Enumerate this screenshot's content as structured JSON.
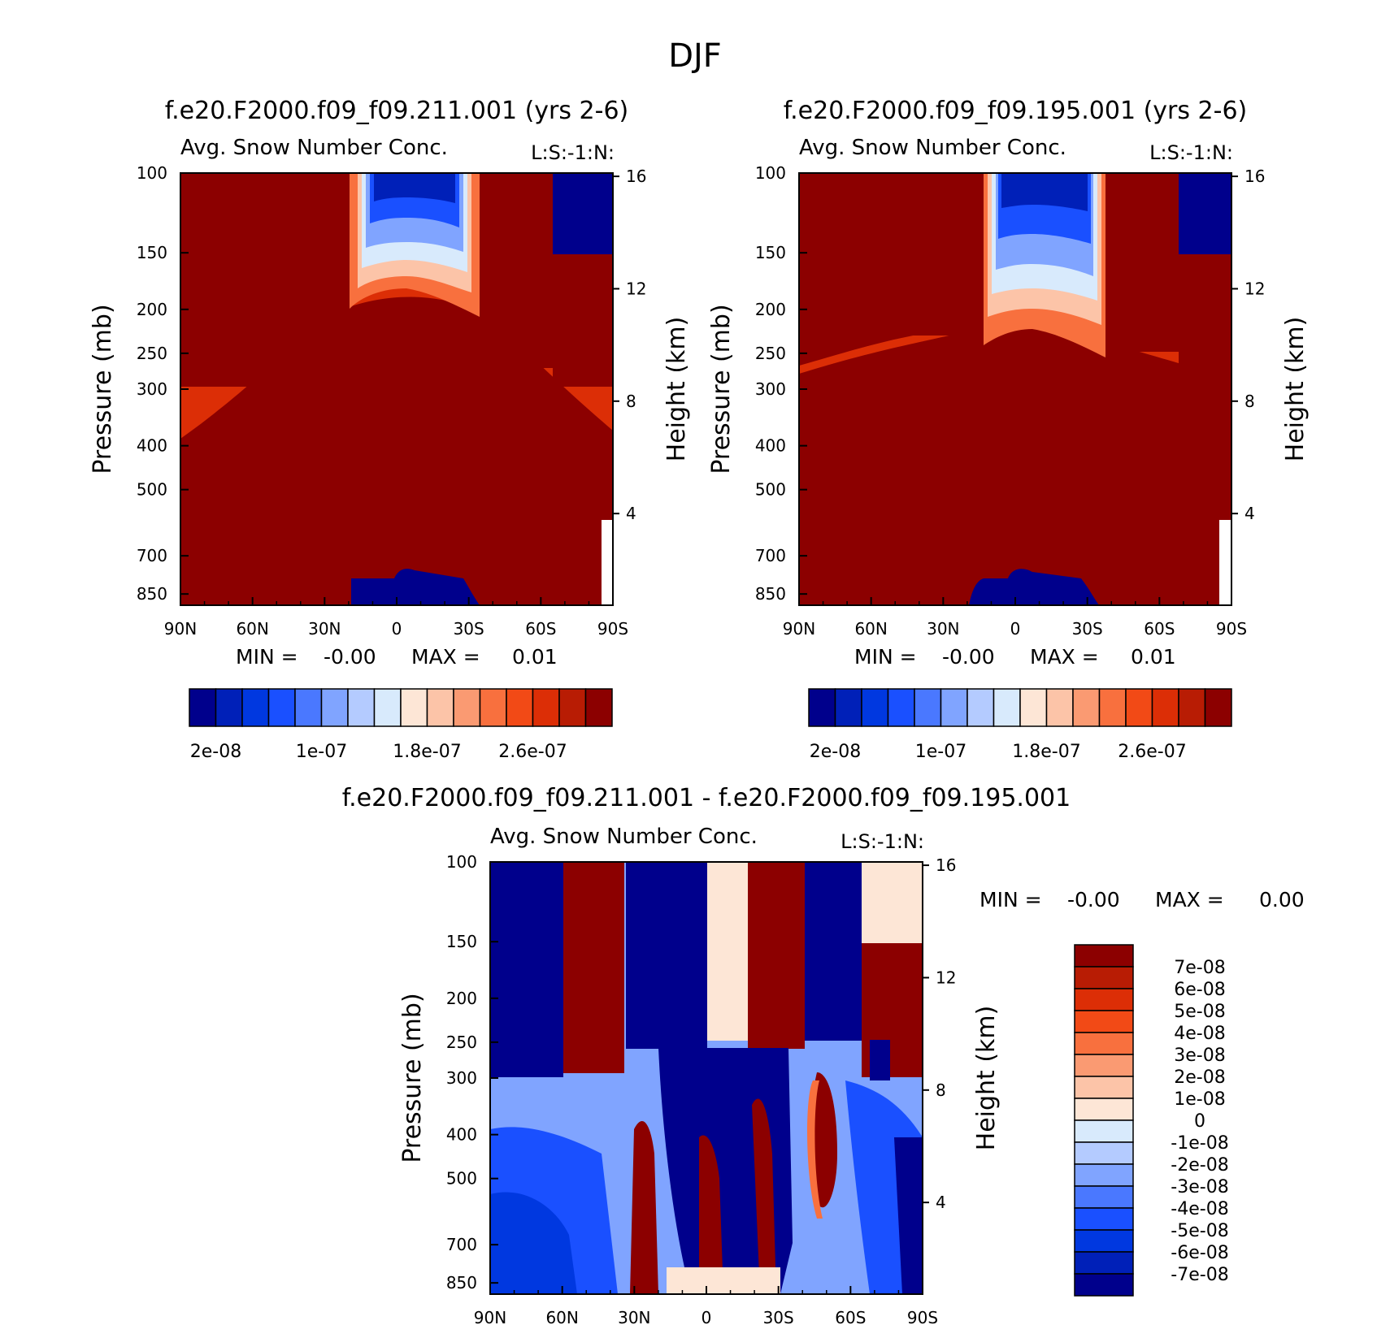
{
  "figure": {
    "title": "DJF"
  },
  "colors": {
    "abs_palette": [
      "#00008c",
      "#0020b8",
      "#0038e0",
      "#1a50ff",
      "#4a78ff",
      "#80a4ff",
      "#b4cbff",
      "#d8eafc",
      "#fde6d6",
      "#fcc4a8",
      "#fa9a72",
      "#f8703e",
      "#f24a16",
      "#dc2e06",
      "#b81c04",
      "#8c0000"
    ],
    "diff_palette": [
      "#00008c",
      "#0020b8",
      "#0038e0",
      "#1a50ff",
      "#4a78ff",
      "#80a4ff",
      "#b4cbff",
      "#d8eafc",
      "#fde6d6",
      "#fcc4a8",
      "#fa9a72",
      "#f8703e",
      "#f24a16",
      "#dc2e06",
      "#b81c04",
      "#8c0000"
    ]
  },
  "chart_data": [
    {
      "type": "heatmap",
      "title": "f.e20.F2000.f09_f09.211.001 (yrs 2-6)",
      "subtitle": "Avg. Snow Number Conc.",
      "annotation": "L:S:-1:N:",
      "ylabel": "Pressure (mb)",
      "y2label": "Height (km)",
      "x_ticks": [
        "90N",
        "60N",
        "30N",
        "0",
        "30S",
        "60S",
        "90S"
      ],
      "y_ticks": [
        "100",
        "150",
        "200",
        "250",
        "300",
        "400",
        "500",
        "700",
        "850"
      ],
      "y2_ticks": [
        "16",
        "12",
        "8",
        "4"
      ],
      "min_label": "MIN =",
      "min_value": "-0.00",
      "max_label": "MAX =",
      "max_value": "0.01",
      "colorbar_labels": [
        "2e-08",
        "1e-07",
        "1.8e-07",
        "2.6e-07"
      ],
      "colorbar_levels": 16
    },
    {
      "type": "heatmap",
      "title": "f.e20.F2000.f09_f09.195.001 (yrs 2-6)",
      "subtitle": "Avg. Snow Number Conc.",
      "annotation": "L:S:-1:N:",
      "ylabel": "Pressure (mb)",
      "y2label": "Height (km)",
      "x_ticks": [
        "90N",
        "60N",
        "30N",
        "0",
        "30S",
        "60S",
        "90S"
      ],
      "y_ticks": [
        "100",
        "150",
        "200",
        "250",
        "300",
        "400",
        "500",
        "700",
        "850"
      ],
      "y2_ticks": [
        "16",
        "12",
        "8",
        "4"
      ],
      "min_label": "MIN =",
      "min_value": "-0.00",
      "max_label": "MAX =",
      "max_value": "0.01",
      "colorbar_labels": [
        "2e-08",
        "1e-07",
        "1.8e-07",
        "2.6e-07"
      ],
      "colorbar_levels": 16
    },
    {
      "type": "heatmap",
      "title": "f.e20.F2000.f09_f09.211.001 - f.e20.F2000.f09_f09.195.001",
      "subtitle": "Avg. Snow Number Conc.",
      "annotation": "L:S:-1:N:",
      "ylabel": "Pressure (mb)",
      "y2label": "Height (km)",
      "x_ticks": [
        "90N",
        "60N",
        "30N",
        "0",
        "30S",
        "60S",
        "90S"
      ],
      "y_ticks": [
        "100",
        "150",
        "200",
        "250",
        "300",
        "400",
        "500",
        "700",
        "850"
      ],
      "y2_ticks": [
        "16",
        "12",
        "8",
        "4"
      ],
      "min_label": "MIN =",
      "min_value": "-0.00",
      "max_label": "MAX =",
      "max_value": "0.00",
      "colorbar_labels": [
        "7e-08",
        "6e-08",
        "5e-08",
        "4e-08",
        "3e-08",
        "2e-08",
        "1e-08",
        "0",
        "-1e-08",
        "-2e-08",
        "-3e-08",
        "-4e-08",
        "-5e-08",
        "-6e-08",
        "-7e-08"
      ],
      "colorbar_levels": 16
    }
  ]
}
